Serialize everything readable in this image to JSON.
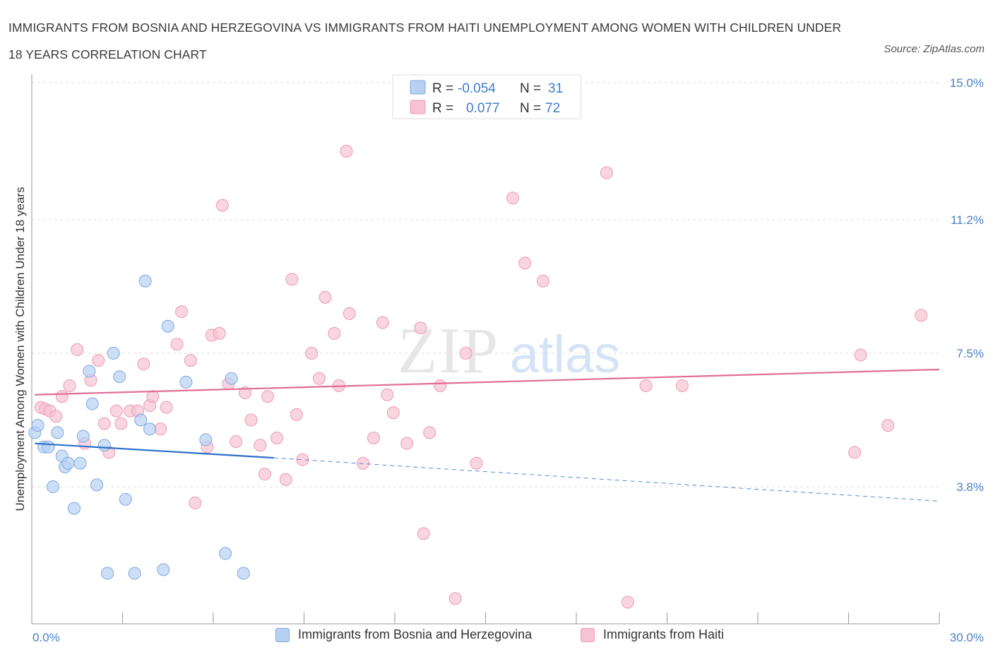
{
  "title": "IMMIGRANTS FROM BOSNIA AND HERZEGOVINA VS IMMIGRANTS FROM HAITI UNEMPLOYMENT AMONG WOMEN WITH CHILDREN UNDER 18 YEARS CORRELATION CHART",
  "source": "Source: ZipAtlas.com",
  "watermark": {
    "zip": "ZIP",
    "atlas": "atlas"
  },
  "legend": {
    "r_label": "R =",
    "n_label": "N =",
    "rows": [
      {
        "r_value": "-0.054",
        "n_value": "31",
        "series": "bosnia"
      },
      {
        "r_value": "0.077",
        "n_value": "72",
        "series": "haiti"
      }
    ]
  },
  "bottom_legend": [
    {
      "label": "Immigrants from Bosnia and Herzegovina",
      "series": "bosnia"
    },
    {
      "label": "Immigrants from Haiti",
      "series": "haiti"
    }
  ],
  "colors": {
    "bosnia_fill": "#b8d1f3",
    "bosnia_stroke": "#7fa8e0",
    "bosnia_line": "#2e6fc9",
    "haiti_fill": "#f6c3d3",
    "haiti_stroke": "#eb9ab5",
    "haiti_line": "#e06d95",
    "tick": "#4a7fc8",
    "grid": "#dddddd"
  },
  "chart_data": {
    "type": "scatter",
    "xlabel": "",
    "ylabel": "Unemployment Among Women with Children Under 18 years",
    "xlim": [
      0,
      30
    ],
    "ylim": [
      0,
      15
    ],
    "x_tick_labels": [
      {
        "value": 0,
        "label": "0.0%"
      },
      {
        "value": 30,
        "label": "30.0%"
      }
    ],
    "y_tick_labels": [
      {
        "value": 3.8,
        "label": "3.8%"
      },
      {
        "value": 7.5,
        "label": "7.5%"
      },
      {
        "value": 11.2,
        "label": "11.2%"
      },
      {
        "value": 15.0,
        "label": "15.0%"
      }
    ],
    "grid": "horizontal dashed",
    "legend_position": "top-center",
    "series": [
      {
        "name": "Immigrants from Bosnia and Herzegovina",
        "key": "bosnia",
        "r": -0.054,
        "n": 31,
        "trend": {
          "x": [
            0.1,
            8.0
          ],
          "y": [
            5.0,
            4.6
          ],
          "dashed_to": [
            30.0,
            3.4
          ]
        },
        "points": [
          [
            0.1,
            5.3
          ],
          [
            0.2,
            5.5
          ],
          [
            0.4,
            4.9
          ],
          [
            0.55,
            4.9
          ],
          [
            0.7,
            3.8
          ],
          [
            0.85,
            5.3
          ],
          [
            1.0,
            4.65
          ],
          [
            1.1,
            4.35
          ],
          [
            1.2,
            4.45
          ],
          [
            1.4,
            3.2
          ],
          [
            1.6,
            4.45
          ],
          [
            1.7,
            5.2
          ],
          [
            1.9,
            7.0
          ],
          [
            2.0,
            6.1
          ],
          [
            2.15,
            3.85
          ],
          [
            2.4,
            4.95
          ],
          [
            2.5,
            1.4
          ],
          [
            2.7,
            7.5
          ],
          [
            2.9,
            6.85
          ],
          [
            3.1,
            3.45
          ],
          [
            3.4,
            1.4
          ],
          [
            3.6,
            5.65
          ],
          [
            3.75,
            9.5
          ],
          [
            3.9,
            5.4
          ],
          [
            4.35,
            1.5
          ],
          [
            4.5,
            8.25
          ],
          [
            5.1,
            6.7
          ],
          [
            5.75,
            5.1
          ],
          [
            6.4,
            1.95
          ],
          [
            6.6,
            6.8
          ],
          [
            7.0,
            1.4
          ]
        ]
      },
      {
        "name": "Immigrants from Haiti",
        "key": "haiti",
        "r": 0.077,
        "n": 72,
        "trend": {
          "x": [
            0.1,
            30.0
          ],
          "y": [
            6.35,
            7.05
          ]
        },
        "points": [
          [
            0.3,
            6.0
          ],
          [
            0.45,
            5.95
          ],
          [
            0.6,
            5.9
          ],
          [
            0.8,
            5.75
          ],
          [
            1.0,
            6.3
          ],
          [
            1.25,
            6.6
          ],
          [
            1.5,
            7.6
          ],
          [
            1.75,
            5.0
          ],
          [
            1.95,
            6.75
          ],
          [
            2.2,
            7.3
          ],
          [
            2.4,
            5.55
          ],
          [
            2.55,
            4.75
          ],
          [
            2.8,
            5.9
          ],
          [
            2.95,
            5.55
          ],
          [
            3.25,
            5.9
          ],
          [
            3.5,
            5.9
          ],
          [
            3.7,
            7.2
          ],
          [
            3.9,
            6.05
          ],
          [
            4.0,
            6.3
          ],
          [
            4.25,
            5.4
          ],
          [
            4.45,
            6.0
          ],
          [
            4.8,
            7.75
          ],
          [
            4.95,
            8.65
          ],
          [
            5.25,
            7.3
          ],
          [
            5.4,
            3.35
          ],
          [
            5.8,
            4.9
          ],
          [
            5.95,
            8.0
          ],
          [
            6.2,
            8.05
          ],
          [
            6.3,
            11.6
          ],
          [
            6.5,
            6.65
          ],
          [
            6.75,
            5.05
          ],
          [
            7.05,
            6.4
          ],
          [
            7.25,
            5.65
          ],
          [
            7.55,
            4.95
          ],
          [
            7.7,
            4.15
          ],
          [
            7.8,
            6.3
          ],
          [
            8.1,
            5.15
          ],
          [
            8.4,
            4.0
          ],
          [
            8.6,
            9.55
          ],
          [
            8.75,
            5.8
          ],
          [
            8.95,
            4.55
          ],
          [
            9.25,
            7.5
          ],
          [
            9.5,
            6.8
          ],
          [
            9.7,
            9.05
          ],
          [
            10.0,
            8.05
          ],
          [
            10.15,
            6.6
          ],
          [
            10.4,
            13.1
          ],
          [
            10.5,
            8.6
          ],
          [
            10.95,
            4.45
          ],
          [
            11.3,
            5.15
          ],
          [
            11.6,
            8.35
          ],
          [
            11.75,
            6.35
          ],
          [
            11.95,
            5.85
          ],
          [
            12.4,
            5.0
          ],
          [
            12.85,
            8.2
          ],
          [
            12.95,
            2.5
          ],
          [
            13.15,
            5.3
          ],
          [
            13.5,
            6.6
          ],
          [
            14.0,
            0.7
          ],
          [
            14.35,
            7.5
          ],
          [
            14.7,
            4.45
          ],
          [
            15.9,
            11.8
          ],
          [
            16.3,
            10.0
          ],
          [
            16.9,
            9.5
          ],
          [
            19.0,
            12.5
          ],
          [
            19.7,
            0.6
          ],
          [
            20.3,
            6.6
          ],
          [
            21.5,
            6.6
          ],
          [
            27.2,
            4.75
          ],
          [
            27.4,
            7.45
          ],
          [
            28.3,
            5.5
          ],
          [
            29.4,
            8.55
          ]
        ]
      }
    ]
  }
}
